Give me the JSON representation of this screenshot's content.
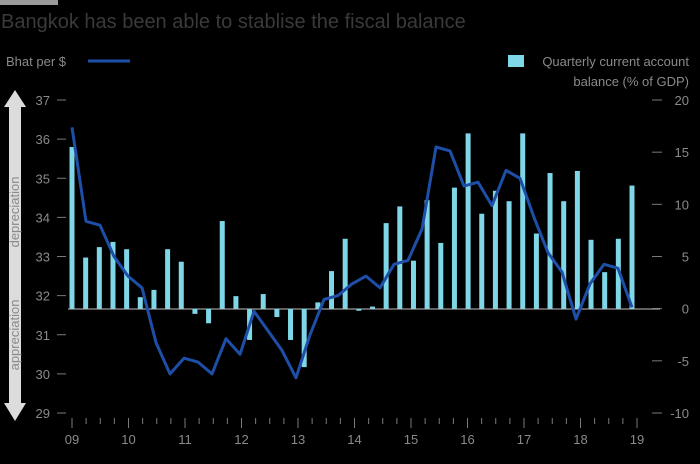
{
  "title": "Bangkok has been able to stablise the fiscal balance",
  "colors": {
    "line": "#1e4fa8",
    "bar": "#7fd6e6",
    "text": "#8a8a8a",
    "axis": "#7a7a7a",
    "arrow": "#dcdcdc"
  },
  "chart_data": {
    "type": "bar+line",
    "series": [
      {
        "name": "Bhat per $",
        "kind": "line",
        "axis": "left",
        "values": [
          36.3,
          33.9,
          33.8,
          33.0,
          32.5,
          32.2,
          30.8,
          30.0,
          30.4,
          30.3,
          30.0,
          30.9,
          30.5,
          31.6,
          31.1,
          30.6,
          29.9,
          31.0,
          31.9,
          32.0,
          32.3,
          32.5,
          32.2,
          32.8,
          32.9,
          33.7,
          35.8,
          35.7,
          34.8,
          34.9,
          34.3,
          35.2,
          35.0,
          34.0,
          33.1,
          32.6,
          31.4,
          32.3,
          32.8,
          32.7,
          31.7
        ]
      },
      {
        "name": "Quarterly current account balance (% of GDP)",
        "kind": "bar",
        "axis": "right",
        "values": [
          15.5,
          4.9,
          5.9,
          6.4,
          5.7,
          1.1,
          1.8,
          5.7,
          4.5,
          -0.5,
          -1.4,
          8.4,
          1.2,
          -3.0,
          1.4,
          -0.8,
          -3.0,
          -5.6,
          0.6,
          3.6,
          6.7,
          -0.2,
          0.2,
          8.2,
          9.8,
          4.6,
          10.4,
          6.3,
          11.6,
          16.8,
          9.1,
          11.3,
          10.3,
          16.8,
          7.2,
          13.0,
          10.3,
          13.2,
          6.6,
          3.5,
          6.7,
          11.8
        ]
      }
    ],
    "left_axis": {
      "label": "Bhat per $",
      "min": 29,
      "max": 37,
      "ticks": [
        "29",
        "30",
        "31",
        "32",
        "33",
        "34",
        "35",
        "36",
        "37"
      ]
    },
    "right_axis": {
      "label": "balance (% of GDP)",
      "min": -10,
      "max": 20,
      "ticks": [
        "-10",
        "-5",
        "0",
        "5",
        "10",
        "15",
        "20"
      ]
    },
    "x_axis": {
      "start_year": 2009,
      "end_year": 2019,
      "tick_labels": [
        "09",
        "10",
        "11",
        "12",
        "13",
        "14",
        "15",
        "16",
        "17",
        "18",
        "19"
      ]
    },
    "legend": {
      "line_label": "Bhat per $",
      "bar_label_1": "Quarterly current account",
      "bar_label_2": "balance (% of GDP)"
    },
    "arrow_labels": {
      "up": "depreciation",
      "down": "appreciation"
    }
  }
}
